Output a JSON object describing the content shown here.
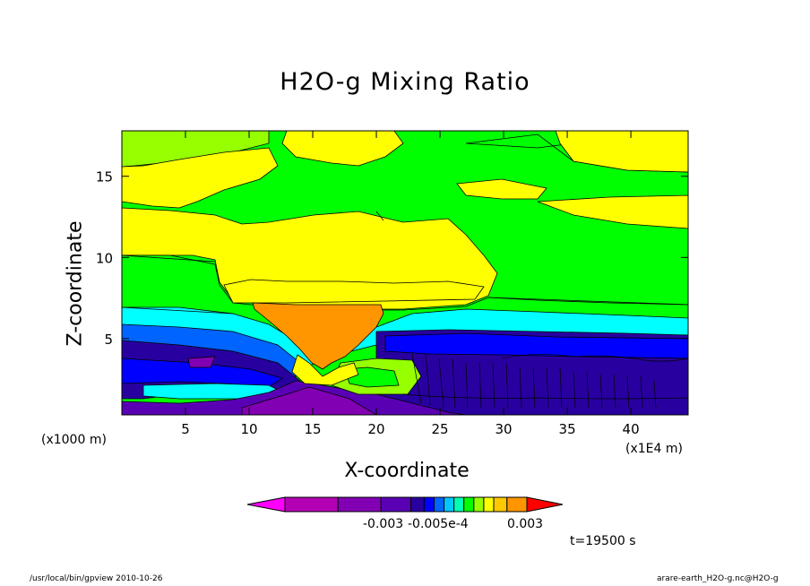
{
  "chart_data": {
    "type": "heatmap",
    "title": "H2O-g Mixing Ratio",
    "xlabel": "X-coordinate",
    "ylabel": "Z-coordinate",
    "x_unit_note": "(x1000 m)",
    "x_scale_note": "(x1E4 m)",
    "x_ticks": [
      5,
      10,
      15,
      20,
      25,
      30,
      35,
      40
    ],
    "y_ticks": [
      5,
      10,
      15
    ],
    "xlim": [
      0,
      44.5
    ],
    "ylim": [
      0.3,
      17.8
    ],
    "colorbar": {
      "colors": [
        "#ff00ff",
        "#b400b4",
        "#8200b4",
        "#5a00b4",
        "#2800a0",
        "#0000ff",
        "#0064ff",
        "#00c8ff",
        "#00ffb4",
        "#00ff00",
        "#96ff00",
        "#ffff00",
        "#ffc800",
        "#ff9600",
        "#ff0000"
      ],
      "tick_labels": [
        "-0.003",
        "-0.005e-4",
        "0.003"
      ]
    },
    "time_label": "t=19500 s"
  },
  "footer": {
    "left": "/usr/local/bin/gpview   2010-10-26",
    "right": "arare-earth_H2O-g.nc@H2O-g"
  }
}
